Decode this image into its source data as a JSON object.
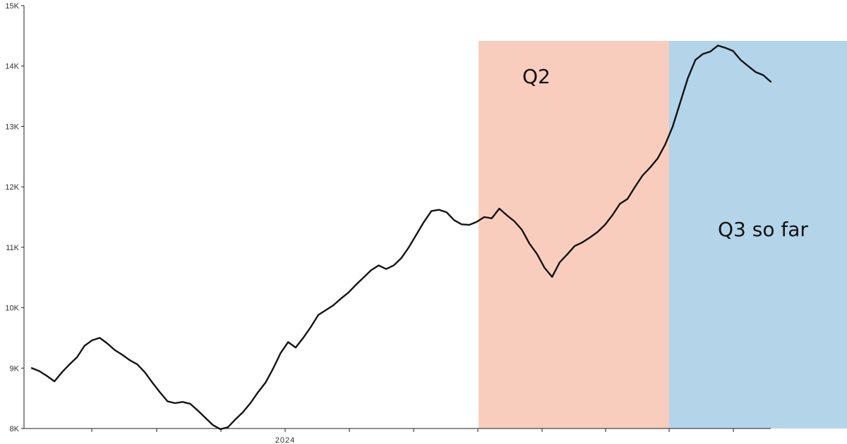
{
  "chart_data": {
    "type": "line",
    "title": "",
    "xlabel": "",
    "ylabel": "",
    "ylim": [
      8000,
      15000
    ],
    "y_ticks": [
      {
        "value": 8000,
        "label": "8K"
      },
      {
        "value": 9000,
        "label": "9K"
      },
      {
        "value": 10000,
        "label": "10K"
      },
      {
        "value": 11000,
        "label": "11K"
      },
      {
        "value": 12000,
        "label": "12K"
      },
      {
        "value": 13000,
        "label": "13K"
      },
      {
        "value": 14000,
        "label": "14K"
      },
      {
        "value": 15000,
        "label": "15K"
      }
    ],
    "x_tick_labels": [
      "2024"
    ],
    "grid": false,
    "regions": [
      {
        "label": "Q2",
        "color": "#f8cdbd"
      },
      {
        "label": "Q3 so far",
        "color": "#b3d4e9"
      }
    ],
    "line_color": "#000000",
    "series": [
      {
        "values": [
          9000,
          8950,
          8870,
          8780,
          8930,
          9060,
          9180,
          9370,
          9460,
          9500,
          9410,
          9300,
          9220,
          9130,
          9060,
          8930,
          8760,
          8600,
          8450,
          8420,
          8440,
          8410,
          8300,
          8180,
          8060,
          7990,
          8020,
          8150,
          8270,
          8420,
          8600,
          8760,
          8990,
          9250,
          9430,
          9340,
          9500,
          9680,
          9880,
          9960,
          10040,
          10150,
          10250,
          10380,
          10500,
          10620,
          10700,
          10640,
          10700,
          10820,
          11000,
          11210,
          11420,
          11600,
          11620,
          11580,
          11450,
          11380,
          11370,
          11420,
          11500,
          11480,
          11640,
          11530,
          11430,
          11290,
          11060,
          10890,
          10660,
          10510,
          10750,
          10880,
          11020,
          11080,
          11160,
          11250,
          11370,
          11530,
          11720,
          11800,
          12000,
          12190,
          12320,
          12470,
          12700,
          13000,
          13400,
          13800,
          14100,
          14200,
          14240,
          14340,
          14300,
          14250,
          14100,
          14000,
          13900,
          13850,
          13740
        ]
      }
    ]
  }
}
